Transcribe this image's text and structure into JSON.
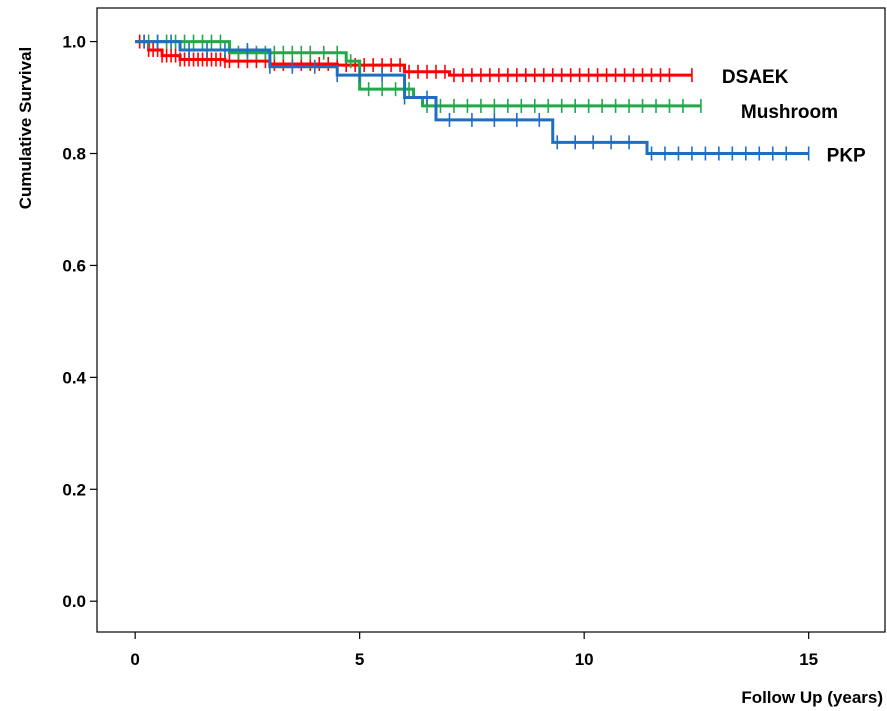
{
  "chart_data": {
    "type": "line",
    "title": "",
    "xlabel": "Follow Up (years)",
    "ylabel": "Cumulative Survival",
    "xlim": [
      -0.85,
      16.7
    ],
    "ylim": [
      -0.055,
      1.06
    ],
    "x_ticks": [
      0,
      5,
      10,
      15
    ],
    "x_tick_labels": [
      "0",
      "5",
      "10",
      "15"
    ],
    "y_ticks": [
      0.0,
      0.2,
      0.4,
      0.6,
      0.8,
      1.0
    ],
    "y_tick_labels": [
      "0.0",
      "0.2",
      "0.4",
      "0.6",
      "0.8",
      "1.0"
    ],
    "grid": false,
    "legend": "inline labels at right end of each curve",
    "series": [
      {
        "name": "DSAEK",
        "color": "#ff0000",
        "x": [
          0,
          0.3,
          0.6,
          1.0,
          2.0,
          3.0,
          4.5,
          6.0,
          7.0,
          12.4
        ],
        "y": [
          1.0,
          0.985,
          0.975,
          0.968,
          0.965,
          0.96,
          0.958,
          0.946,
          0.94,
          0.94
        ],
        "censor_x": [
          0.1,
          0.2,
          0.3,
          0.4,
          0.5,
          0.6,
          0.7,
          0.8,
          0.9,
          1.0,
          1.1,
          1.2,
          1.3,
          1.4,
          1.5,
          1.6,
          1.7,
          1.8,
          1.9,
          2.0,
          2.1,
          2.3,
          2.5,
          2.7,
          2.9,
          3.1,
          3.3,
          3.5,
          3.7,
          3.9,
          4.1,
          4.3,
          4.5,
          4.7,
          4.9,
          5.1,
          5.3,
          5.5,
          5.7,
          5.9,
          6.1,
          6.3,
          6.5,
          6.7,
          6.9,
          7.1,
          7.3,
          7.5,
          7.7,
          7.9,
          8.1,
          8.3,
          8.5,
          8.7,
          8.9,
          9.1,
          9.3,
          9.5,
          9.7,
          9.9,
          10.1,
          10.3,
          10.5,
          10.7,
          10.9,
          11.1,
          11.3,
          11.5,
          11.7,
          11.9,
          12.4
        ]
      },
      {
        "name": "Mushroom",
        "color": "#22a84a",
        "x": [
          0,
          2.0,
          2.1,
          4.0,
          4.7,
          5.0,
          6.2,
          6.4,
          12.6
        ],
        "y": [
          1.0,
          1.0,
          0.98,
          0.98,
          0.965,
          0.915,
          0.9,
          0.885,
          0.885
        ],
        "censor_x": [
          0.3,
          0.5,
          0.7,
          0.9,
          1.1,
          1.3,
          1.5,
          1.7,
          1.9,
          2.3,
          2.5,
          2.7,
          2.9,
          3.1,
          3.3,
          3.5,
          3.7,
          3.9,
          4.2,
          4.5,
          4.8,
          5.2,
          5.5,
          5.8,
          6.1,
          6.5,
          6.8,
          7.1,
          7.4,
          7.7,
          8.0,
          8.3,
          8.6,
          8.9,
          9.2,
          9.5,
          9.8,
          10.1,
          10.4,
          10.7,
          11.0,
          11.3,
          11.6,
          11.9,
          12.2,
          12.6
        ]
      },
      {
        "name": "PKP",
        "color": "#1f6fc0",
        "x": [
          0,
          1.0,
          3.0,
          4.5,
          6.0,
          6.7,
          6.9,
          9.3,
          11.4,
          15.0
        ],
        "y": [
          1.0,
          0.985,
          0.955,
          0.94,
          0.9,
          0.86,
          0.86,
          0.82,
          0.8,
          0.8
        ],
        "censor_x": [
          0.2,
          0.5,
          0.8,
          1.2,
          1.6,
          2.0,
          2.5,
          3.0,
          3.5,
          4.0,
          4.5,
          5.0,
          5.5,
          6.0,
          6.5,
          7.0,
          7.5,
          8.0,
          8.5,
          9.0,
          9.4,
          9.8,
          10.2,
          10.6,
          11.0,
          11.5,
          11.8,
          12.1,
          12.4,
          12.7,
          13.0,
          13.3,
          13.6,
          13.9,
          14.2,
          14.5,
          15.0
        ]
      }
    ]
  }
}
